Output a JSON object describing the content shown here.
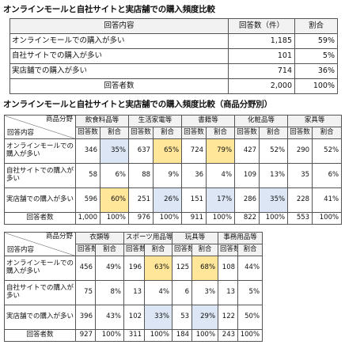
{
  "summary": {
    "title": "オンラインモールと自社サイトと実店舗での購入頻度比較",
    "headers": [
      "回答内容",
      "回答数（件）",
      "割合"
    ],
    "rows": [
      {
        "label": "オンラインモールでの購入が多い",
        "count": "1,185",
        "pct": "59%"
      },
      {
        "label": "自社サイトでの購入が多い",
        "count": "101",
        "pct": "5%"
      },
      {
        "label": "実店舗での購入が多い",
        "count": "714",
        "pct": "36%"
      }
    ],
    "total": {
      "label": "回答者数",
      "count": "2,000",
      "pct": "100%"
    }
  },
  "by_category": {
    "title": "オンラインモールと自社サイトと実店舗での購入頻度比較（商品分野別）",
    "corner_top": "商品分野",
    "corner_bottom": "回答内容",
    "count_label": "回答数",
    "pct_label": "割合",
    "row_labels": [
      "オンラインモールでの購入が多い",
      "自社サイトでの購入が多い",
      "実店舗での購入が多い"
    ],
    "total_label": "回答者数",
    "table1": {
      "categories": [
        "飲食料品等",
        "生活家電等",
        "書籍等",
        "化粧品等",
        "家具等"
      ],
      "rows": [
        [
          [
            "346",
            "35%"
          ],
          [
            "637",
            "65%"
          ],
          [
            "724",
            "79%"
          ],
          [
            "427",
            "52%"
          ],
          [
            "290",
            "52%"
          ]
        ],
        [
          [
            "58",
            "6%"
          ],
          [
            "88",
            "9%"
          ],
          [
            "36",
            "4%"
          ],
          [
            "109",
            "13%"
          ],
          [
            "35",
            "6%"
          ]
        ],
        [
          [
            "596",
            "60%"
          ],
          [
            "251",
            "26%"
          ],
          [
            "151",
            "17%"
          ],
          [
            "286",
            "35%"
          ],
          [
            "228",
            "41%"
          ]
        ]
      ],
      "totals": [
        [
          "1,000",
          "100%"
        ],
        [
          "976",
          "100%"
        ],
        [
          "911",
          "100%"
        ],
        [
          "822",
          "100%"
        ],
        [
          "553",
          "100%"
        ]
      ]
    },
    "table2": {
      "categories": [
        "衣類等",
        "スポーツ用品等",
        "玩具等",
        "事務用品等"
      ],
      "rows": [
        [
          [
            "456",
            "49%"
          ],
          [
            "196",
            "63%"
          ],
          [
            "125",
            "68%"
          ],
          [
            "108",
            "44%"
          ]
        ],
        [
          [
            "75",
            "8%"
          ],
          [
            "13",
            "4%"
          ],
          [
            "6",
            "3%"
          ],
          [
            "13",
            "5%"
          ]
        ],
        [
          [
            "396",
            "43%"
          ],
          [
            "102",
            "33%"
          ],
          [
            "53",
            "29%"
          ],
          [
            "122",
            "50%"
          ]
        ]
      ],
      "totals": [
        [
          "927",
          "100%"
        ],
        [
          "311",
          "100%"
        ],
        [
          "184",
          "100%"
        ],
        [
          "243",
          "100%"
        ]
      ]
    }
  }
}
